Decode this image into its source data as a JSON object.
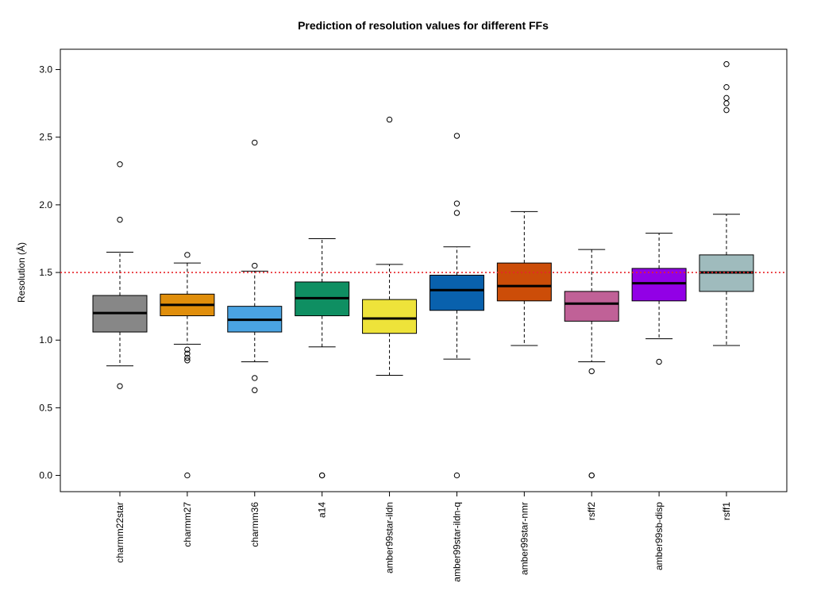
{
  "chart_data": {
    "type": "boxplot",
    "title": "Prediction of resolution values for different FFs",
    "xlabel": "",
    "ylabel": "Resolution (Å)",
    "ylim": [
      -0.12,
      3.15
    ],
    "yticks": [
      0.0,
      0.5,
      1.0,
      1.5,
      2.0,
      2.5,
      3.0
    ],
    "ytick_labels": [
      "0.0",
      "0.5",
      "1.0",
      "1.5",
      "2.0",
      "2.5",
      "3.0"
    ],
    "reference_line": {
      "y": 1.5,
      "color": "#e8242a",
      "style": "dotted"
    },
    "grid": false,
    "legend": "none",
    "categories": [
      "charmm22star",
      "charmm27",
      "charmm36",
      "a14",
      "amber99star-ildn",
      "amber99star-ildn-q",
      "amber99star-nmr",
      "rsff2",
      "amber99sb-disp",
      "rsff1"
    ],
    "boxes": [
      {
        "name": "charmm22star",
        "color": "#878787",
        "whisker_low": 0.81,
        "q1": 1.06,
        "median": 1.2,
        "q3": 1.33,
        "whisker_high": 1.65,
        "outliers": [
          0.66,
          1.89,
          2.3
        ]
      },
      {
        "name": "charmm27",
        "color": "#e08e0b",
        "whisker_low": 0.97,
        "q1": 1.18,
        "median": 1.26,
        "q3": 1.34,
        "whisker_high": 1.57,
        "outliers": [
          0.0,
          0.85,
          0.87,
          0.9,
          0.93,
          1.63
        ]
      },
      {
        "name": "charmm36",
        "color": "#4aa3e2",
        "whisker_low": 0.84,
        "q1": 1.06,
        "median": 1.15,
        "q3": 1.25,
        "whisker_high": 1.51,
        "outliers": [
          0.63,
          0.72,
          1.55,
          2.46
        ]
      },
      {
        "name": "a14",
        "color": "#0f8f62",
        "whisker_low": 0.95,
        "q1": 1.18,
        "median": 1.31,
        "q3": 1.43,
        "whisker_high": 1.75,
        "outliers": [
          0.0,
          0.0
        ]
      },
      {
        "name": "amber99star-ildn",
        "color": "#eee33a",
        "whisker_low": 0.74,
        "q1": 1.05,
        "median": 1.16,
        "q3": 1.3,
        "whisker_high": 1.56,
        "outliers": [
          2.63
        ]
      },
      {
        "name": "amber99star-ildn-q",
        "color": "#0961ad",
        "whisker_low": 0.86,
        "q1": 1.22,
        "median": 1.37,
        "q3": 1.48,
        "whisker_high": 1.69,
        "outliers": [
          0.0,
          1.94,
          2.01,
          2.51
        ]
      },
      {
        "name": "amber99star-nmr",
        "color": "#cc4d08",
        "whisker_low": 0.96,
        "q1": 1.29,
        "median": 1.4,
        "q3": 1.57,
        "whisker_high": 1.95,
        "outliers": []
      },
      {
        "name": "rsff2",
        "color": "#c06197",
        "whisker_low": 0.84,
        "q1": 1.14,
        "median": 1.27,
        "q3": 1.36,
        "whisker_high": 1.67,
        "outliers": [
          0.0,
          0.0,
          0.77
        ]
      },
      {
        "name": "amber99sb-disp",
        "color": "#9200e6",
        "whisker_low": 1.01,
        "q1": 1.29,
        "median": 1.42,
        "q3": 1.53,
        "whisker_high": 1.79,
        "outliers": [
          0.84
        ]
      },
      {
        "name": "rsff1",
        "color": "#9fbbbd",
        "whisker_low": 0.96,
        "q1": 1.36,
        "median": 1.5,
        "q3": 1.63,
        "whisker_high": 1.93,
        "outliers": [
          2.7,
          2.75,
          2.79,
          2.87,
          3.04
        ]
      }
    ]
  }
}
